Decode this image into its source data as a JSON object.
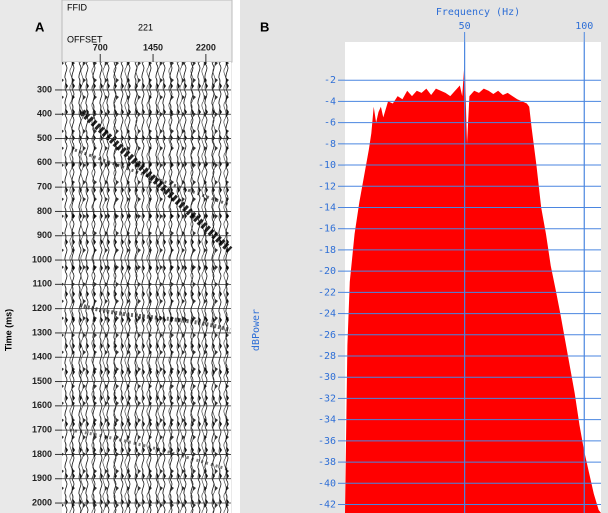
{
  "chart_data": [
    {
      "type": "seismic",
      "panel_label": "A",
      "ffid_label": "FFID",
      "ffid_value": 221,
      "offset_label": "OFFSET",
      "y_label": "Time (ms)",
      "xlim": [
        157,
        2557
      ],
      "xticks": [
        700,
        1450,
        2200
      ],
      "ylim": [
        185,
        2041
      ],
      "y_inverted": true,
      "yticks": [
        300,
        400,
        500,
        600,
        700,
        800,
        900,
        1000,
        1100,
        1200,
        1300,
        1400,
        1500,
        1600,
        1700,
        1800,
        1900,
        2000
      ],
      "grid": true
    },
    {
      "type": "area",
      "panel_label": "B",
      "x_label": "Frequency (Hz)",
      "y_label": "dBPower",
      "x": [
        0,
        1,
        2,
        4,
        6,
        8,
        10,
        11,
        12,
        13,
        14,
        15,
        16,
        18,
        20,
        22,
        24,
        26,
        28,
        30,
        32,
        34,
        36,
        38,
        40,
        42,
        44,
        46,
        48,
        49,
        50,
        51,
        52,
        54,
        56,
        58,
        60,
        62,
        64,
        66,
        68,
        70,
        72,
        74,
        76,
        77,
        78,
        80,
        82,
        84,
        86,
        88,
        90,
        92,
        94,
        96,
        98,
        100,
        102,
        104,
        106,
        107
      ],
      "values": [
        -42.8,
        -27,
        -21,
        -16.5,
        -13.5,
        -11,
        -8.5,
        -7,
        -4.5,
        -6,
        -5,
        -4.5,
        -5.5,
        -4,
        -4.2,
        -3.5,
        -3.8,
        -3,
        -3.5,
        -3,
        -3.2,
        -2.8,
        -3.4,
        -2.8,
        -3,
        -3.2,
        -3.5,
        -3,
        -2.5,
        -3.5,
        -0.2,
        -8,
        -3.5,
        -3,
        -3.2,
        -2.8,
        -3,
        -3.3,
        -3,
        -3.4,
        -3.2,
        -3.5,
        -3.8,
        -4,
        -4.2,
        -4.5,
        -6.5,
        -10,
        -14,
        -16.5,
        -19.5,
        -21.7,
        -24,
        -26.5,
        -29,
        -31.5,
        -34.5,
        -37,
        -39,
        -41,
        -42.5,
        -42.8
      ],
      "color": "#ff0000",
      "grid_color": "#4a86e0",
      "xlim": [
        0,
        107
      ],
      "xticks": [
        50,
        100
      ],
      "ylim": [
        -42.8,
        1.6
      ],
      "yticks": [
        -2,
        -4,
        -6,
        -8,
        -10,
        -12,
        -14,
        -16,
        -18,
        -20,
        -22,
        -24,
        -26,
        -28,
        -30,
        -32,
        -34,
        -36,
        -38,
        -40,
        -42
      ],
      "grid": true
    }
  ]
}
